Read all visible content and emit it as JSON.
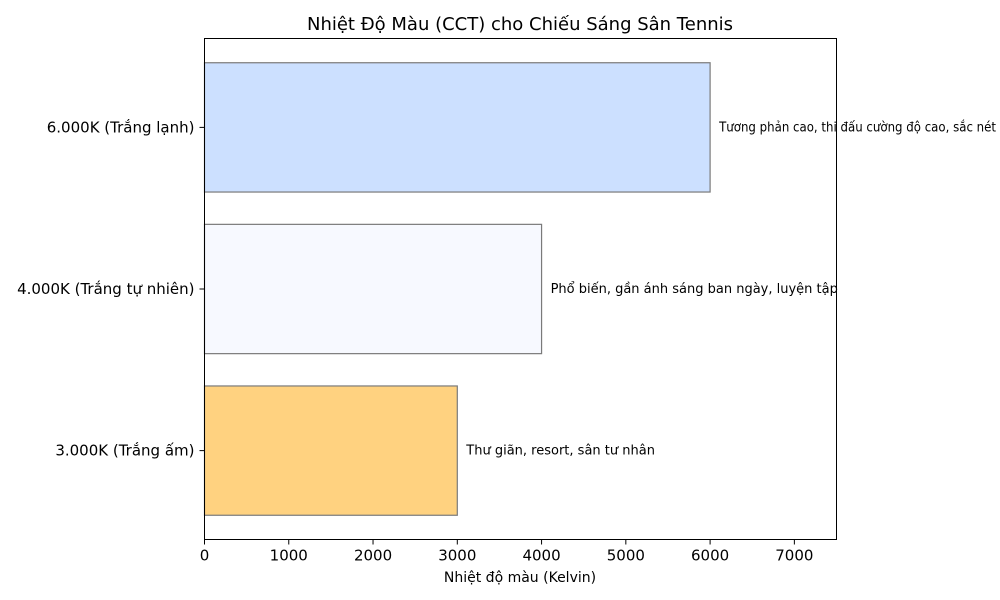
{
  "chart_data": {
    "type": "bar",
    "orientation": "horizontal",
    "title": "Nhiệt Độ Màu (CCT) cho Chiếu Sáng Sân Tennis",
    "xlabel": "Nhiệt độ màu (Kelvin)",
    "ylabel": "",
    "xlim": [
      0,
      7500
    ],
    "xticks": [
      0,
      1000,
      2000,
      3000,
      4000,
      5000,
      6000,
      7000
    ],
    "grid": false,
    "categories": [
      "3.000K (Trắng ấm)",
      "4.000K (Trắng tự nhiên)",
      "6.000K (Trắng lạnh)"
    ],
    "values": [
      3000,
      4000,
      6000
    ],
    "colors": [
      "#ffd280",
      "#f7f9ff",
      "#cce0ff"
    ],
    "edge_color": "#7a7a7a",
    "annotations": [
      "Thư giãn, resort, sân tư nhân",
      "Phổ biến, gần ánh sáng ban ngày, luyện tập",
      "Tương phản cao, thi đấu cường độ cao, sắc nét"
    ]
  }
}
